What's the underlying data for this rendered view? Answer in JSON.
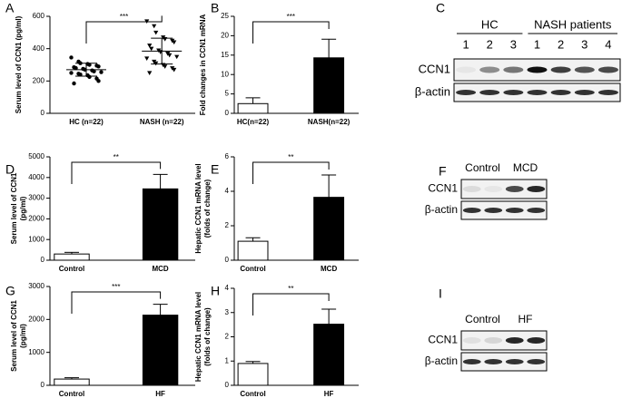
{
  "chart_data": [
    {
      "type": "strip",
      "label": "A",
      "ylabel": [
        "Serum level of CCN1 (pg/ml)"
      ],
      "categories": [
        "HC (n=22)",
        "NASH (n=22)"
      ],
      "points": [
        [
          345,
          320,
          310,
          305,
          300,
          295,
          290,
          285,
          280,
          275,
          270,
          265,
          260,
          255,
          250,
          245,
          240,
          235,
          225,
          215,
          200,
          185
        ],
        [
          570,
          540,
          500,
          470,
          460,
          450,
          440,
          420,
          400,
          390,
          380,
          370,
          360,
          350,
          340,
          320,
          310,
          300,
          290,
          280,
          270,
          250
        ]
      ],
      "means": [
        270,
        385
      ],
      "sds": [
        40,
        80
      ],
      "ylim": [
        0,
        600
      ],
      "yticks": [
        0,
        200,
        400,
        600
      ],
      "significance": "***"
    },
    {
      "type": "bar",
      "label": "B",
      "ylabel": [
        "Fold changes in CCN1 mRNA"
      ],
      "categories": [
        "HC(n=22)",
        "NASH(n=22)"
      ],
      "values": [
        2.5,
        14.3
      ],
      "errors": [
        1.5,
        4.8
      ],
      "colors": [
        "#ffffff",
        "#000000"
      ],
      "ylim": [
        0,
        25
      ],
      "yticks": [
        0,
        5,
        10,
        15,
        20,
        25
      ],
      "significance": "***"
    },
    {
      "type": "bar",
      "label": "D",
      "ylabel": [
        "Serum level of CCN1",
        "(pg/ml)"
      ],
      "categories": [
        "Control",
        "MCD"
      ],
      "values": [
        300,
        3450
      ],
      "errors": [
        80,
        700
      ],
      "colors": [
        "#ffffff",
        "#000000"
      ],
      "ylim": [
        0,
        5000
      ],
      "yticks": [
        0,
        1000,
        2000,
        3000,
        4000,
        5000
      ],
      "significance": "**"
    },
    {
      "type": "bar",
      "label": "E",
      "ylabel": [
        "Hepatic CCN1 mRNA level",
        "(folds of change)"
      ],
      "categories": [
        "Control",
        "MCD"
      ],
      "values": [
        1.1,
        3.65
      ],
      "errors": [
        0.2,
        1.3
      ],
      "colors": [
        "#ffffff",
        "#000000"
      ],
      "ylim": [
        0,
        6
      ],
      "yticks": [
        0,
        2,
        4,
        6
      ],
      "significance": "**"
    },
    {
      "type": "bar",
      "label": "G",
      "ylabel": [
        "Serum level of CCN1",
        "(pg/ml)"
      ],
      "categories": [
        "Control",
        "HF"
      ],
      "values": [
        190,
        2130
      ],
      "errors": [
        40,
        330
      ],
      "colors": [
        "#ffffff",
        "#000000"
      ],
      "ylim": [
        0,
        3000
      ],
      "yticks": [
        0,
        1000,
        2000,
        3000
      ],
      "significance": "***"
    },
    {
      "type": "bar",
      "label": "H",
      "ylabel": [
        "Hepatic CCN1 mRNA level",
        "(folds of change)"
      ],
      "categories": [
        "Control",
        "HF"
      ],
      "values": [
        0.9,
        2.52
      ],
      "errors": [
        0.08,
        0.62
      ],
      "colors": [
        "#ffffff",
        "#000000"
      ],
      "ylim": [
        0,
        4
      ],
      "yticks": [
        0,
        1,
        2,
        3,
        4
      ],
      "significance": "**"
    }
  ],
  "blots": [
    {
      "label": "C",
      "groups": [
        {
          "name": "HC",
          "lanes": [
            "1",
            "2",
            "3"
          ]
        },
        {
          "name": "NASH patients",
          "lanes": [
            "1",
            "2",
            "3",
            "4"
          ]
        }
      ],
      "rows": [
        "CCN1",
        "β-actin"
      ]
    },
    {
      "label": "F",
      "groups": [
        {
          "name": "Control"
        },
        {
          "name": "MCD"
        }
      ],
      "rows": [
        "CCN1",
        "β-actin"
      ]
    },
    {
      "label": "I",
      "groups": [
        {
          "name": "Control"
        },
        {
          "name": "HF"
        }
      ],
      "rows": [
        "CCN1",
        "β-actin"
      ]
    }
  ]
}
